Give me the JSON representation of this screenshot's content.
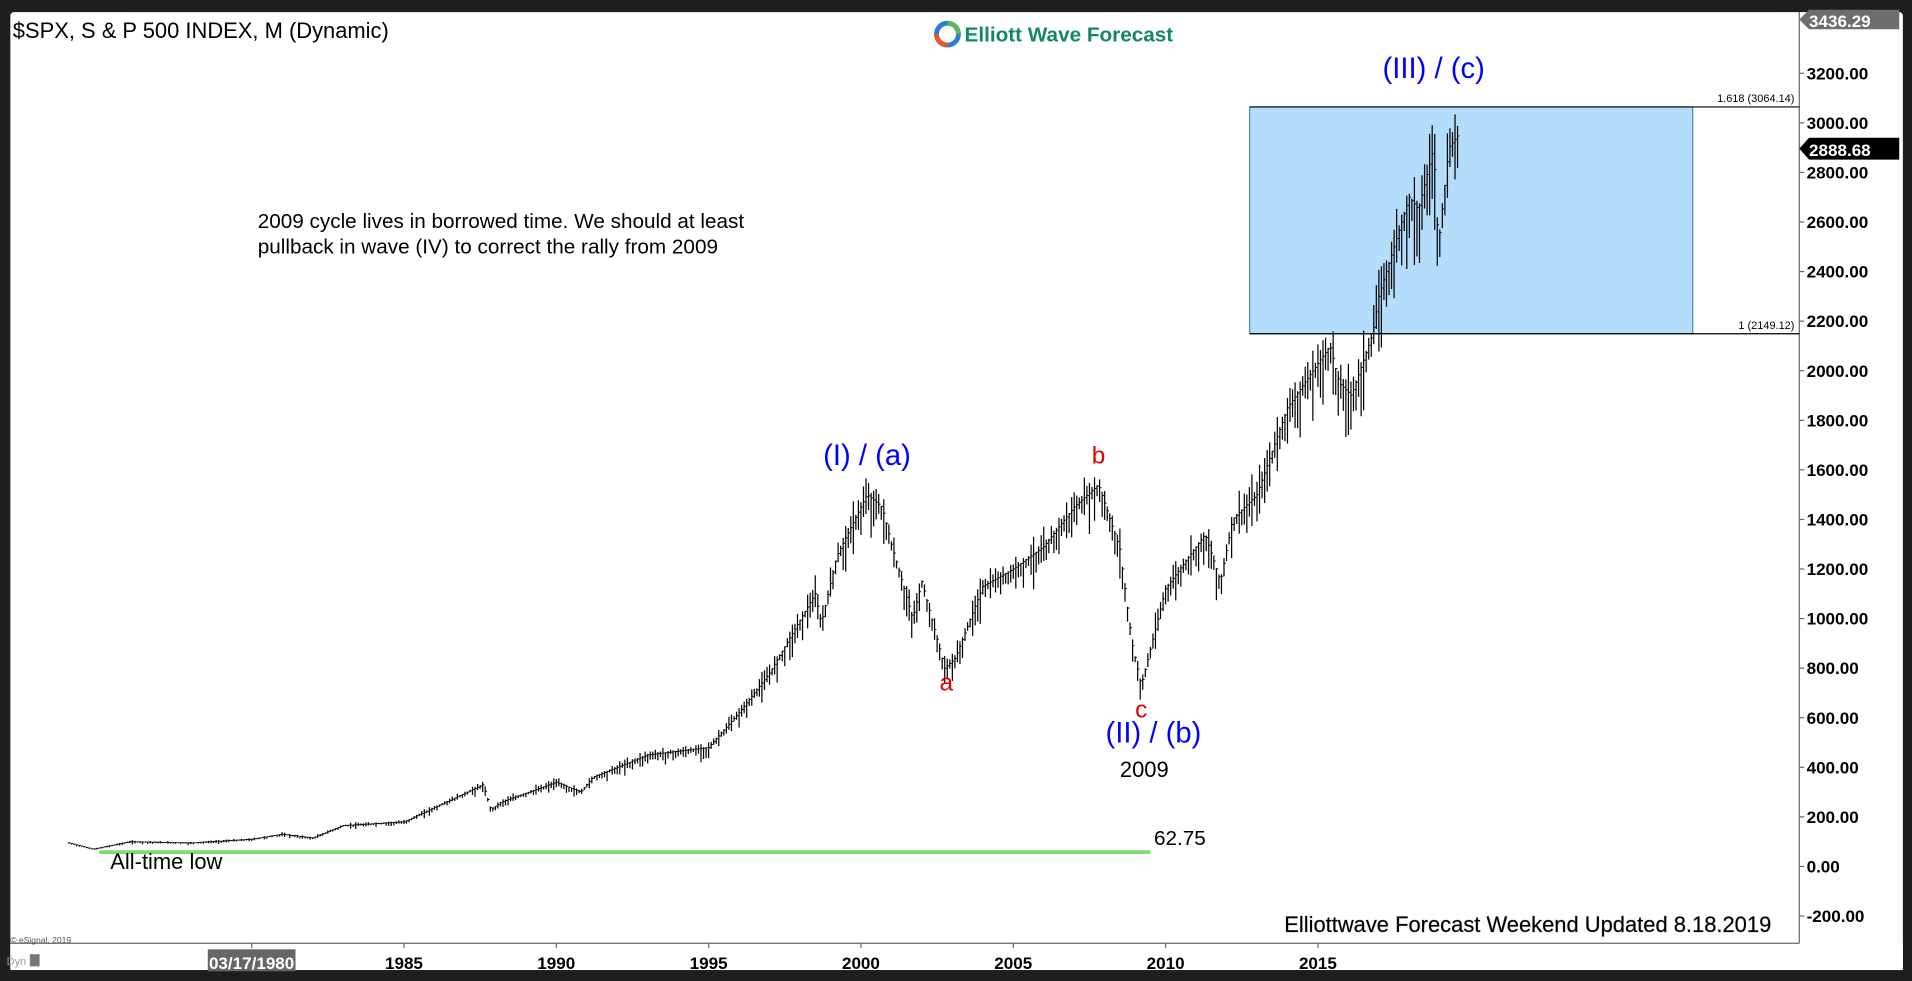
{
  "header": {
    "title": "$SPX, S & P 500 INDEX, M (Dynamic)",
    "logo_text": "Elliott Wave Forecast"
  },
  "footer": {
    "updated": "Elliottwave Forecast Weekend Updated 8.18.2019",
    "copyright": "© eSignal, 2019",
    "dyn_label": "Dyn"
  },
  "colors": {
    "wave_label_blue": "#0000ff",
    "wave_label_red": "#e00000",
    "fib_box_fill": "#b3ddfb",
    "support_line": "#7ddc6e",
    "bars": "#000000"
  },
  "chart_data": {
    "type": "ohlc-bar",
    "interval": "monthly",
    "title": "$SPX, S & P 500 INDEX, M (Dynamic)",
    "y_axis": {
      "side": "right",
      "range": [
        -250,
        3436.29
      ],
      "ticks": [
        "3200.00",
        "3000.00",
        "2800.00",
        "2600.00",
        "2400.00",
        "2200.00",
        "2000.00",
        "1800.00",
        "1600.00",
        "1400.00",
        "1200.00",
        "1000.00",
        "800.00",
        "600.00",
        "400.00",
        "200.00",
        "0.00",
        "-200.00"
      ]
    },
    "x_axis": {
      "range": [
        1972.0,
        2030.6
      ],
      "ticks": [
        "03/17/1980",
        "1985",
        "1990",
        "1995",
        "2000",
        "2005",
        "2010",
        "2015"
      ],
      "highlighted_tick": "03/17/1980"
    },
    "price_tags": {
      "high": "3436.29",
      "last": "2888.68"
    },
    "approx_path": [
      [
        1974.0,
        95
      ],
      [
        1974.8,
        70
      ],
      [
        1975.2,
        80
      ],
      [
        1976,
        100
      ],
      [
        1978,
        95
      ],
      [
        1980,
        110
      ],
      [
        1981,
        130
      ],
      [
        1982,
        115
      ],
      [
        1983,
        165
      ],
      [
        1985,
        180
      ],
      [
        1987.6,
        330
      ],
      [
        1987.85,
        230
      ],
      [
        1988.2,
        260
      ],
      [
        1990,
        340
      ],
      [
        1990.8,
        300
      ],
      [
        1991.2,
        360
      ],
      [
        1993,
        450
      ],
      [
        1994,
        465
      ],
      [
        1995,
        480
      ],
      [
        1996,
        620
      ],
      [
        1997,
        780
      ],
      [
        1998.5,
        1100
      ],
      [
        1998.7,
        980
      ],
      [
        1999.2,
        1250
      ],
      [
        2000.2,
        1500
      ],
      [
        2000.7,
        1450
      ],
      [
        2001,
        1300
      ],
      [
        2001.7,
        1000
      ],
      [
        2002,
        1150
      ],
      [
        2002.75,
        800
      ],
      [
        2003.1,
        840
      ],
      [
        2004,
        1130
      ],
      [
        2005,
        1200
      ],
      [
        2006,
        1290
      ],
      [
        2007,
        1450
      ],
      [
        2007.8,
        1540
      ],
      [
        2008.5,
        1280
      ],
      [
        2008.9,
        900
      ],
      [
        2009.2,
        730
      ],
      [
        2010,
        1120
      ],
      [
        2011.3,
        1340
      ],
      [
        2011.8,
        1150
      ],
      [
        2012.2,
        1400
      ],
      [
        2013,
        1500
      ],
      [
        2014,
        1850
      ],
      [
        2015.4,
        2100
      ],
      [
        2015.7,
        1950
      ],
      [
        2016.1,
        1900
      ],
      [
        2016.8,
        2150
      ],
      [
        2017,
        2300
      ],
      [
        2018,
        2700
      ],
      [
        2018.3,
        2650
      ],
      [
        2018.8,
        2900
      ],
      [
        2018.95,
        2500
      ],
      [
        2019.3,
        2900
      ],
      [
        2019.6,
        2950
      ]
    ],
    "fib_box": {
      "from": 2012.76,
      "to": 2027.3,
      "upper": 3064.14,
      "lower": 2149.12,
      "upper_label": "1.618 (3064.14)",
      "lower_label": "1 (2149.12)"
    },
    "support_line": {
      "value": 62.75,
      "from": 1975.0,
      "to": 2009.5,
      "label": "62.75"
    },
    "annotations": [
      {
        "text": "(I) / (a)",
        "x": 2000.2,
        "y": 1620,
        "color": "blue"
      },
      {
        "text": "a",
        "x": 2002.8,
        "y": 710,
        "color": "red"
      },
      {
        "text": "b",
        "x": 2007.8,
        "y": 1625,
        "color": "red"
      },
      {
        "text": "c",
        "x": 2009.2,
        "y": 600,
        "color": "red"
      },
      {
        "text": "(II) / (b)",
        "x": 2009.6,
        "y": 500,
        "color": "blue"
      },
      {
        "text": "2009",
        "x": 2009.3,
        "y": 360,
        "color": "black"
      },
      {
        "text": "(III) / (c)",
        "x": 2018.8,
        "y": 3180,
        "color": "blue"
      },
      {
        "text": "All-time low",
        "x": 1977.2,
        "y": -10,
        "color": "black"
      }
    ],
    "note": [
      "2009 cycle lives in borrowed time. We should at least",
      "pullback in wave (IV) to correct the rally from 2009"
    ]
  }
}
